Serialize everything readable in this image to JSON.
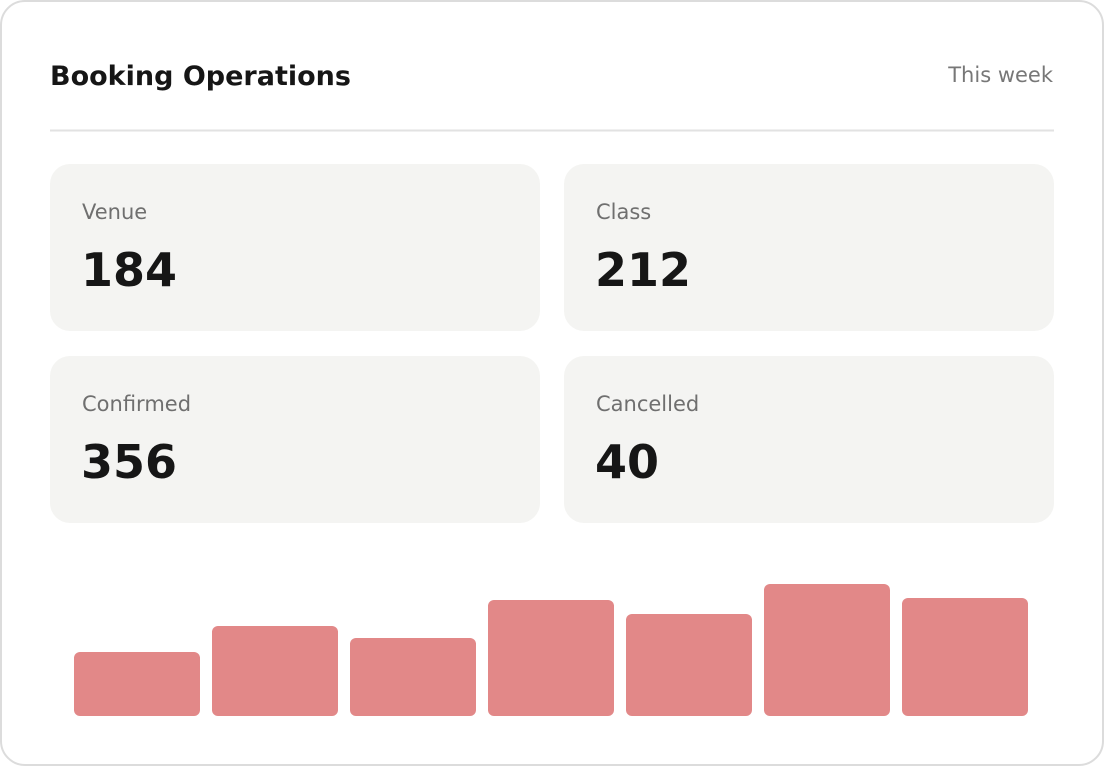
{
  "header": {
    "title": "Booking Operations",
    "period": "This week"
  },
  "stats": [
    {
      "label": "Venue",
      "value": 184
    },
    {
      "label": "Class",
      "value": 212
    },
    {
      "label": "Confirmed",
      "value": 356
    },
    {
      "label": "Cancelled",
      "value": 40
    }
  ],
  "chart_data": {
    "type": "bar",
    "values": [
      64,
      90,
      78,
      116,
      102,
      132,
      118
    ],
    "color": "#e28888"
  }
}
